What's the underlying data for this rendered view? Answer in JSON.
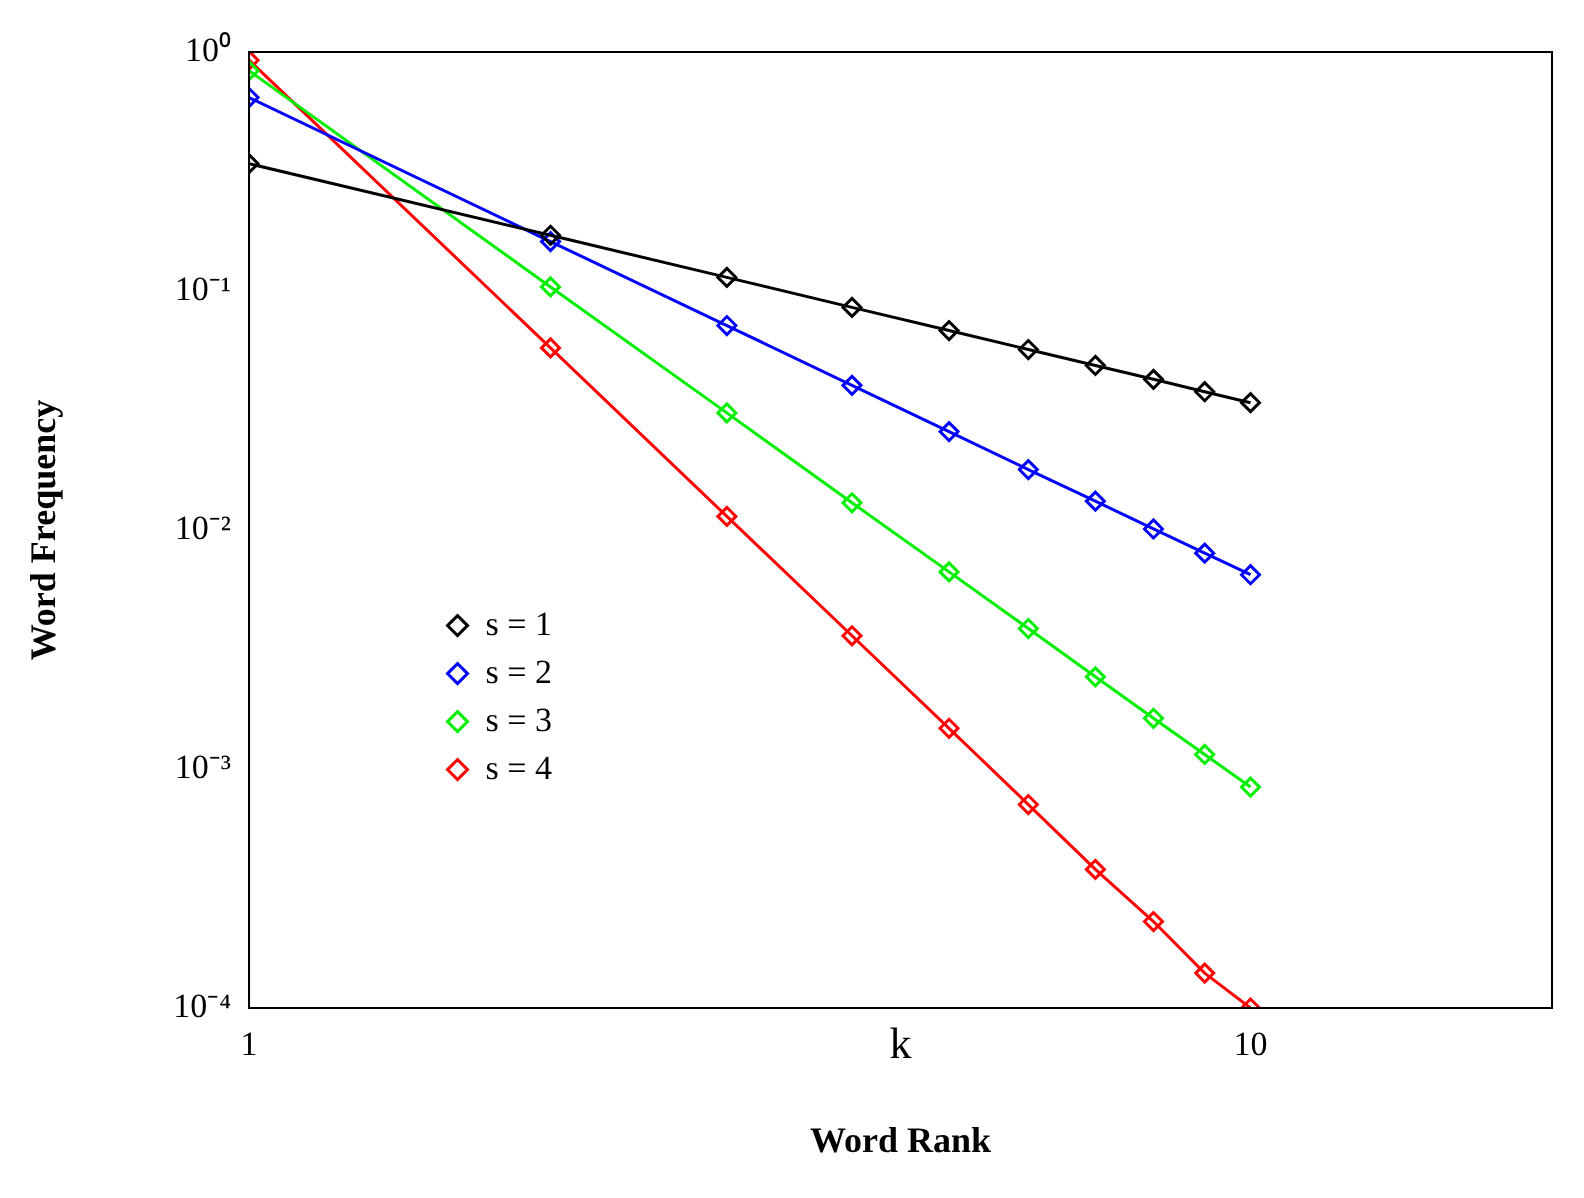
{
  "chart_data": {
    "type": "line",
    "xlabel": "Word Rank",
    "ylabel": "Word Frequency",
    "annotations": [
      "k"
    ],
    "x": [
      1,
      2,
      3,
      4,
      5,
      6,
      7,
      8,
      9,
      10
    ],
    "series": [
      {
        "name": "s = 1",
        "color": "#000000",
        "values": [
          0.341,
          0.171,
          0.114,
          0.0854,
          0.0683,
          0.0569,
          0.0488,
          0.0427,
          0.0379,
          0.0341
        ]
      },
      {
        "name": "s = 2",
        "color": "#0000ff",
        "values": [
          0.645,
          0.161,
          0.0717,
          0.0403,
          0.0258,
          0.0179,
          0.0132,
          0.0101,
          0.008,
          0.0065
        ]
      },
      {
        "name": "s = 3",
        "color": "#00ee00",
        "values": [
          0.835,
          0.104,
          0.0309,
          0.013,
          0.00668,
          0.00387,
          0.00243,
          0.00163,
          0.00115,
          0.00084
        ]
      },
      {
        "name": "s = 4",
        "color": "#ff0000",
        "values": [
          0.924,
          0.0578,
          0.0114,
          0.00361,
          0.00148,
          0.00071,
          0.00038,
          0.00023,
          0.00014,
          0.0001
        ]
      }
    ],
    "log": "xy",
    "xlim": [
      1,
      20
    ],
    "xticks": [
      1,
      10
    ],
    "ylim": [
      0.0001,
      1
    ],
    "yticks": [
      {
        "value": 0.0001,
        "label": "10⁻⁴"
      },
      {
        "value": 0.001,
        "label": "10⁻³"
      },
      {
        "value": 0.01,
        "label": "10⁻²"
      },
      {
        "value": 0.1,
        "label": "10⁻¹"
      },
      {
        "value": 1,
        "label": "10⁰"
      }
    ],
    "grid": false,
    "legend": "left",
    "marker": "diamond",
    "line_style": "solid"
  }
}
